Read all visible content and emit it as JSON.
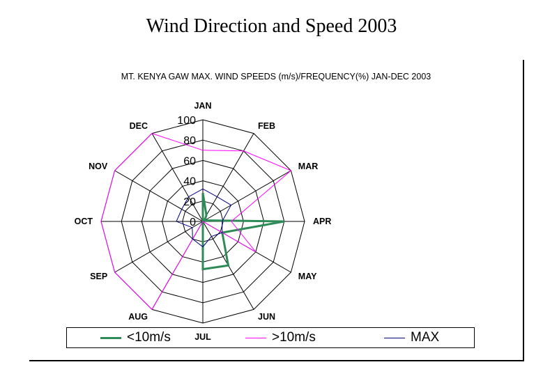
{
  "title": "Wind Direction and Speed 2003",
  "chart_data": {
    "type": "radar",
    "subtitle": "MT. KENYA  GAW MAX. WIND SPEEDS (m/s)/FREQUENCY(%) JAN-DEC 2003",
    "categories": [
      "JAN",
      "FEB",
      "MAR",
      "APR",
      "MAY",
      "JUN",
      "JUL",
      "AUG",
      "SEP",
      "OCT",
      "NOV",
      "DEC"
    ],
    "rlim": [
      0,
      100
    ],
    "ticks": [
      "0",
      "20",
      "40",
      "60",
      "80",
      "100"
    ],
    "series": [
      {
        "name": "<10m/s",
        "color": "#2e8b57",
        "values": [
          28,
          7,
          2,
          80,
          22,
          50,
          47,
          0,
          0,
          0,
          0,
          0
        ]
      },
      {
        "name": ">10m/s",
        "color": "#ff00ff",
        "values": [
          70,
          80,
          100,
          28,
          60,
          0,
          0,
          100,
          100,
          100,
          100,
          100
        ]
      },
      {
        "name": "MAX",
        "color": "#000080",
        "values": [
          32,
          28,
          32,
          19,
          22,
          17,
          25,
          20,
          12,
          26,
          24,
          28
        ]
      }
    ],
    "legend": "bottom"
  }
}
